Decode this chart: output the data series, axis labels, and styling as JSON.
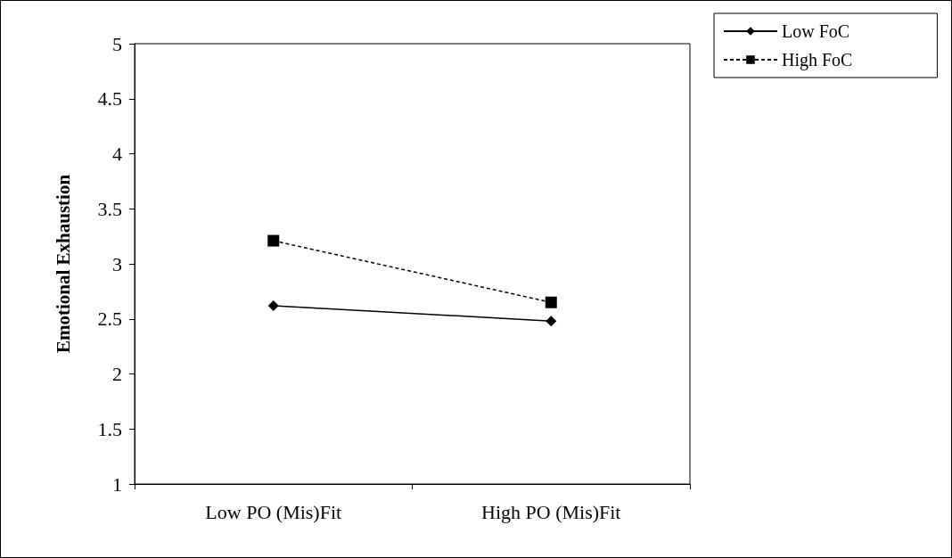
{
  "chart_data": {
    "type": "line",
    "ylabel": "Emotional Exhaustion",
    "categories": [
      "Low PO (Mis)Fit",
      "High PO (Mis)Fit"
    ],
    "series": [
      {
        "name": "Low FoC",
        "color": "#000000",
        "values": [
          2.62,
          2.48
        ],
        "marker": "diamond",
        "line_style": "solid"
      },
      {
        "name": "High FoC",
        "color": "#000000",
        "values": [
          3.21,
          2.65
        ],
        "marker": "square",
        "line_style": "dashed"
      }
    ],
    "ylim": [
      1,
      5
    ],
    "yticks": [
      1,
      1.5,
      2,
      2.5,
      3,
      3.5,
      4,
      4.5,
      5
    ],
    "grid": false,
    "legend": "top right"
  }
}
